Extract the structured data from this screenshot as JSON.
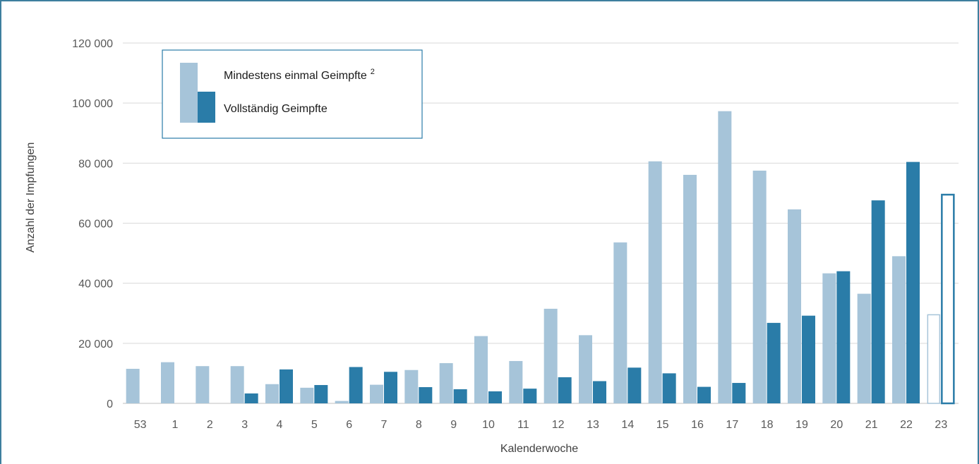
{
  "chart_data": {
    "type": "bar",
    "xlabel": "Kalenderwoche",
    "ylabel": "Anzahl der Impfungen",
    "ylim": [
      0,
      120000
    ],
    "yticks": [
      0,
      20000,
      40000,
      60000,
      80000,
      100000,
      120000
    ],
    "ytick_labels": [
      "0",
      "20 000",
      "40 000",
      "60 000",
      "80 000",
      "100 000",
      "120 000"
    ],
    "grid": true,
    "legend_position": "top-left",
    "categories": [
      "53",
      "1",
      "2",
      "3",
      "4",
      "5",
      "6",
      "7",
      "8",
      "9",
      "10",
      "11",
      "12",
      "13",
      "14",
      "15",
      "16",
      "17",
      "18",
      "19",
      "20",
      "21",
      "22",
      "23"
    ],
    "series": [
      {
        "name": "Mindestens einmal Geimpfte",
        "superscript": "2",
        "color": "#a6c4d9",
        "values": [
          11500,
          13700,
          12400,
          12400,
          6400,
          5200,
          800,
          6200,
          11100,
          13400,
          22400,
          14100,
          31500,
          22700,
          53600,
          80600,
          76100,
          97300,
          77500,
          64600,
          43300,
          36500,
          49000,
          29500
        ]
      },
      {
        "name": "Vollständig Geimpfte",
        "color": "#2a7ca8",
        "values": [
          0,
          0,
          0,
          3300,
          11300,
          6100,
          12100,
          10500,
          5400,
          4700,
          4000,
          4900,
          8700,
          7400,
          11900,
          10000,
          5500,
          6800,
          26800,
          29200,
          44000,
          67600,
          80400,
          69500
        ]
      }
    ],
    "outlined_categories": [
      "23"
    ]
  }
}
